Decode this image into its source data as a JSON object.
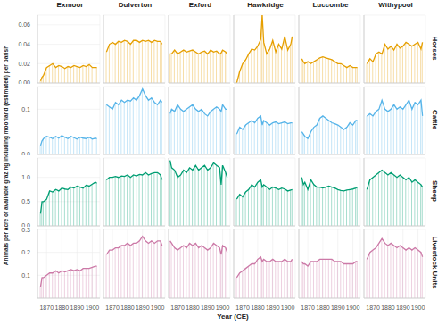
{
  "x_label": "Year (CE)",
  "y_label": "Animals per acre of available grazing including moorland (estimated) per parish",
  "xlim": [
    1864,
    1905
  ],
  "xticks": [
    1870,
    1880,
    1890,
    1900
  ],
  "grid": true,
  "chart_data": [
    {
      "type": "line",
      "title": "Exmoor",
      "x": [
        1866,
        1867,
        1868,
        1870,
        1872,
        1874,
        1876,
        1878,
        1880,
        1882,
        1884,
        1886,
        1888,
        1890,
        1892,
        1894,
        1896,
        1898,
        1900,
        1902,
        1903
      ],
      "series": [
        {
          "name": "Horses",
          "color": "#E69F00",
          "ylim": [
            0,
            0.07
          ],
          "yticks": [
            {
              "value": 0,
              "label": "0.00"
            },
            0.02,
            0.04,
            0.06
          ],
          "values": [
            0.002,
            0.006,
            0.008,
            0.016,
            0.018,
            0.02,
            0.016,
            0.018,
            0.017,
            0.015,
            0.017,
            0.016,
            0.018,
            0.017,
            0.016,
            0.018,
            0.017,
            0.019,
            0.016,
            0.016,
            0.016
          ]
        },
        {
          "name": "Cattle",
          "color": "#56B4E9",
          "ylim": [
            0,
            0.15
          ],
          "yticks": [
            {
              "value": 0,
              "label": "0.0"
            },
            0.1
          ],
          "values": [
            0.02,
            0.03,
            0.035,
            0.04,
            0.038,
            0.035,
            0.04,
            0.036,
            0.042,
            0.038,
            0.035,
            0.04,
            0.037,
            0.034,
            0.038,
            0.036,
            0.035,
            0.038,
            0.034,
            0.036,
            0.035
          ]
        },
        {
          "name": "Sheep",
          "color": "#009E73",
          "ylim": [
            0,
            1.4
          ],
          "yticks": [
            {
              "value": 0,
              "label": "0.0"
            },
            0.5,
            {
              "value": 1,
              "label": "1.0"
            }
          ],
          "values": [
            0.25,
            0.5,
            0.5,
            0.55,
            0.72,
            0.7,
            0.75,
            0.72,
            0.78,
            0.76,
            0.75,
            0.8,
            0.78,
            0.82,
            0.8,
            0.78,
            0.84,
            0.82,
            0.86,
            0.9,
            0.88
          ]
        },
        {
          "name": "Livestock Units",
          "color": "#CC79A7",
          "ylim": [
            0,
            0.3
          ],
          "yticks": [
            0.1,
            0.2,
            0.3
          ],
          "values": [
            0.05,
            0.09,
            0.09,
            0.1,
            0.11,
            0.11,
            0.12,
            0.11,
            0.12,
            0.115,
            0.12,
            0.125,
            0.12,
            0.125,
            0.12,
            0.13,
            0.13,
            0.13,
            0.135,
            0.14,
            0.14
          ]
        }
      ]
    },
    {
      "type": "line",
      "title": "Dulverton",
      "x": [
        1866,
        1868,
        1870,
        1872,
        1874,
        1876,
        1878,
        1880,
        1882,
        1884,
        1886,
        1888,
        1890,
        1892,
        1894,
        1896,
        1898,
        1900,
        1902,
        1903
      ],
      "series": [
        {
          "name": "Horses",
          "color": "#E69F00",
          "ylim": [
            0,
            0.07
          ],
          "yticks": [
            {
              "value": 0,
              "label": "0.00"
            },
            0.02,
            0.04,
            0.06
          ],
          "values": [
            0.032,
            0.04,
            0.042,
            0.04,
            0.043,
            0.042,
            0.044,
            0.043,
            0.04,
            0.044,
            0.044,
            0.042,
            0.044,
            0.043,
            0.044,
            0.042,
            0.044,
            0.043,
            0.043,
            0.04
          ]
        },
        {
          "name": "Cattle",
          "color": "#56B4E9",
          "ylim": [
            0,
            0.15
          ],
          "yticks": [
            {
              "value": 0,
              "label": "0.0"
            },
            0.1
          ],
          "values": [
            0.11,
            0.105,
            0.1,
            0.115,
            0.11,
            0.12,
            0.115,
            0.12,
            0.118,
            0.125,
            0.12,
            0.13,
            0.145,
            0.13,
            0.12,
            0.125,
            0.115,
            0.11,
            0.12,
            0.115
          ]
        },
        {
          "name": "Sheep",
          "color": "#009E73",
          "ylim": [
            0,
            1.4
          ],
          "yticks": [
            {
              "value": 0,
              "label": "0.0"
            },
            0.5,
            {
              "value": 1,
              "label": "1.0"
            }
          ],
          "values": [
            0.95,
            1.0,
            1.0,
            1.02,
            1.0,
            1.03,
            1.02,
            1.05,
            1.0,
            1.05,
            1.03,
            1.06,
            1.05,
            1.1,
            1.05,
            1.08,
            1.1,
            1.1,
            1.05,
            0.95
          ]
        },
        {
          "name": "Livestock Units",
          "color": "#CC79A7",
          "ylim": [
            0,
            0.3
          ],
          "yticks": [
            0.1,
            0.2,
            0.3
          ],
          "values": [
            0.19,
            0.21,
            0.21,
            0.22,
            0.22,
            0.23,
            0.23,
            0.24,
            0.23,
            0.24,
            0.24,
            0.25,
            0.27,
            0.25,
            0.24,
            0.25,
            0.24,
            0.25,
            0.25,
            0.23
          ]
        }
      ]
    },
    {
      "type": "line",
      "title": "Exford",
      "x": [
        1865,
        1866,
        1868,
        1870,
        1872,
        1874,
        1876,
        1878,
        1880,
        1882,
        1884,
        1886,
        1888,
        1890,
        1892,
        1894,
        1896,
        1898,
        1899,
        1900,
        1902,
        1903
      ],
      "series": [
        {
          "name": "Horses",
          "color": "#E69F00",
          "ylim": [
            0,
            0.07
          ],
          "yticks": [
            {
              "value": 0,
              "label": "0.00"
            },
            0.02,
            0.04,
            0.06
          ],
          "values": [
            0.03,
            0.03,
            0.034,
            0.03,
            0.032,
            0.034,
            0.032,
            0.033,
            0.034,
            0.032,
            0.03,
            0.032,
            0.033,
            0.03,
            0.034,
            0.032,
            0.033,
            0.03,
            0.031,
            0.034,
            0.032,
            0.03
          ]
        },
        {
          "name": "Cattle",
          "color": "#56B4E9",
          "ylim": [
            0,
            0.15
          ],
          "yticks": [
            {
              "value": 0,
              "label": "0.0"
            },
            0.1
          ],
          "values": [
            0.09,
            0.1,
            0.095,
            0.11,
            0.1,
            0.095,
            0.1,
            0.105,
            0.11,
            0.1,
            0.095,
            0.1,
            0.09,
            0.085,
            0.095,
            0.1,
            0.105,
            0.1,
            0.095,
            0.11,
            0.1,
            0.1
          ]
        },
        {
          "name": "Sheep",
          "color": "#009E73",
          "ylim": [
            0,
            1.4
          ],
          "yticks": [
            {
              "value": 0,
              "label": "0.0"
            },
            0.5,
            {
              "value": 1,
              "label": "1.0"
            }
          ],
          "values": [
            1.35,
            1.2,
            1.15,
            1.0,
            1.05,
            1.15,
            1.1,
            1.2,
            1.15,
            1.25,
            1.15,
            1.2,
            1.25,
            1.15,
            1.2,
            1.3,
            1.25,
            1.2,
            0.85,
            1.25,
            1.1,
            1.0
          ]
        },
        {
          "name": "Livestock Units",
          "color": "#CC79A7",
          "ylim": [
            0,
            0.3
          ],
          "yticks": [
            0.1,
            0.2,
            0.3
          ],
          "values": [
            0.25,
            0.24,
            0.22,
            0.21,
            0.22,
            0.23,
            0.22,
            0.24,
            0.23,
            0.24,
            0.22,
            0.23,
            0.22,
            0.21,
            0.22,
            0.24,
            0.23,
            0.22,
            0.19,
            0.23,
            0.22,
            0.2
          ]
        }
      ]
    },
    {
      "type": "line",
      "title": "Hawkridge",
      "x": [
        1866,
        1868,
        1870,
        1872,
        1874,
        1876,
        1878,
        1880,
        1882,
        1883,
        1884,
        1886,
        1888,
        1890,
        1892,
        1894,
        1896,
        1898,
        1900,
        1902,
        1903
      ],
      "series": [
        {
          "name": "Horses",
          "color": "#E69F00",
          "ylim": [
            0,
            0.07
          ],
          "yticks": [
            {
              "value": 0,
              "label": "0.00"
            },
            0.02,
            0.04,
            0.06
          ],
          "values": [
            0.0,
            0.012,
            0.02,
            0.024,
            0.03,
            0.035,
            0.034,
            0.038,
            0.045,
            0.07,
            0.042,
            0.03,
            0.035,
            0.044,
            0.032,
            0.04,
            0.035,
            0.048,
            0.034,
            0.04,
            0.048
          ]
        },
        {
          "name": "Cattle",
          "color": "#56B4E9",
          "ylim": [
            0,
            0.15
          ],
          "yticks": [
            {
              "value": 0,
              "label": "0.0"
            },
            0.1
          ],
          "values": [
            0.045,
            0.06,
            0.055,
            0.065,
            0.07,
            0.075,
            0.07,
            0.08,
            0.085,
            0.065,
            0.075,
            0.07,
            0.065,
            0.07,
            0.072,
            0.068,
            0.07,
            0.072,
            0.068,
            0.07,
            0.07
          ]
        },
        {
          "name": "Sheep",
          "color": "#009E73",
          "ylim": [
            0,
            1.4
          ],
          "yticks": [
            {
              "value": 0,
              "label": "0.0"
            },
            0.5,
            {
              "value": 1,
              "label": "1.0"
            }
          ],
          "values": [
            0.55,
            0.65,
            0.6,
            0.7,
            0.75,
            0.85,
            0.8,
            0.9,
            0.95,
            0.8,
            0.85,
            0.8,
            0.75,
            0.8,
            0.78,
            0.75,
            0.78,
            0.76,
            0.72,
            0.74,
            0.75
          ]
        },
        {
          "name": "Livestock Units",
          "color": "#CC79A7",
          "ylim": [
            0,
            0.3
          ],
          "yticks": [
            0.1,
            0.2,
            0.3
          ],
          "values": [
            0.09,
            0.11,
            0.12,
            0.13,
            0.14,
            0.15,
            0.15,
            0.17,
            0.18,
            0.16,
            0.17,
            0.16,
            0.16,
            0.17,
            0.16,
            0.16,
            0.16,
            0.17,
            0.16,
            0.16,
            0.17
          ]
        }
      ]
    },
    {
      "type": "line",
      "title": "Luccombe",
      "x": [
        1866,
        1867,
        1868,
        1870,
        1872,
        1874,
        1876,
        1878,
        1880,
        1882,
        1884,
        1886,
        1888,
        1890,
        1892,
        1894,
        1896,
        1898,
        1900,
        1902,
        1903
      ],
      "series": [
        {
          "name": "Horses",
          "color": "#E69F00",
          "ylim": [
            0,
            0.07
          ],
          "yticks": [
            {
              "value": 0,
              "label": "0.00"
            },
            0.02,
            0.04,
            0.06
          ],
          "values": [
            0.025,
            0.022,
            0.02,
            0.022,
            0.02,
            0.022,
            0.024,
            0.026,
            0.027,
            0.026,
            0.025,
            0.024,
            0.022,
            0.02,
            0.02,
            0.018,
            0.016,
            0.018,
            0.016,
            0.016,
            0.016
          ]
        },
        {
          "name": "Cattle",
          "color": "#56B4E9",
          "ylim": [
            0,
            0.15
          ],
          "yticks": [
            {
              "value": 0,
              "label": "0.0"
            },
            0.1
          ],
          "values": [
            0.05,
            0.045,
            0.04,
            0.035,
            0.05,
            0.06,
            0.065,
            0.08,
            0.085,
            0.08,
            0.075,
            0.07,
            0.068,
            0.065,
            0.06,
            0.055,
            0.06,
            0.07,
            0.065,
            0.075,
            0.075
          ]
        },
        {
          "name": "Sheep",
          "color": "#009E73",
          "ylim": [
            0,
            1.4
          ],
          "yticks": [
            {
              "value": 0,
              "label": "0.0"
            },
            0.5,
            {
              "value": 1,
              "label": "1.0"
            }
          ],
          "values": [
            1.0,
            0.85,
            0.9,
            0.75,
            0.95,
            0.85,
            0.8,
            0.8,
            0.78,
            0.8,
            0.82,
            0.8,
            0.78,
            0.75,
            0.73,
            0.72,
            0.74,
            0.75,
            0.76,
            0.78,
            0.8
          ]
        },
        {
          "name": "Livestock Units",
          "color": "#CC79A7",
          "ylim": [
            0,
            0.3
          ],
          "yticks": [
            0.1,
            0.2,
            0.3
          ],
          "values": [
            0.16,
            0.15,
            0.15,
            0.14,
            0.16,
            0.16,
            0.16,
            0.17,
            0.17,
            0.17,
            0.17,
            0.17,
            0.16,
            0.16,
            0.16,
            0.15,
            0.15,
            0.15,
            0.15,
            0.16,
            0.16
          ]
        }
      ]
    },
    {
      "type": "line",
      "title": "Withypool",
      "x": [
        1866,
        1868,
        1870,
        1872,
        1874,
        1876,
        1878,
        1880,
        1882,
        1884,
        1886,
        1888,
        1890,
        1892,
        1894,
        1896,
        1898,
        1900,
        1902,
        1903
      ],
      "series": [
        {
          "name": "Horses",
          "color": "#E69F00",
          "ylim": [
            0,
            0.07
          ],
          "yticks": [
            {
              "value": 0,
              "label": "0.00"
            },
            0.02,
            0.04,
            0.06
          ],
          "values": [
            0.02,
            0.025,
            0.022,
            0.03,
            0.032,
            0.03,
            0.04,
            0.035,
            0.038,
            0.034,
            0.04,
            0.036,
            0.038,
            0.042,
            0.04,
            0.038,
            0.04,
            0.042,
            0.035,
            0.042
          ]
        },
        {
          "name": "Cattle",
          "color": "#56B4E9",
          "ylim": [
            0,
            0.15
          ],
          "yticks": [
            {
              "value": 0,
              "label": "0.0"
            },
            0.1
          ],
          "values": [
            0.085,
            0.09,
            0.085,
            0.095,
            0.1,
            0.12,
            0.1,
            0.095,
            0.1,
            0.11,
            0.1,
            0.105,
            0.1,
            0.11,
            0.12,
            0.1,
            0.115,
            0.11,
            0.12,
            0.085
          ]
        },
        {
          "name": "Sheep",
          "color": "#009E73",
          "ylim": [
            0,
            1.4
          ],
          "yticks": [
            {
              "value": 0,
              "label": "0.0"
            },
            0.5,
            {
              "value": 1,
              "label": "1.0"
            }
          ],
          "values": [
            0.75,
            0.95,
            1.0,
            1.05,
            1.1,
            1.15,
            1.1,
            1.05,
            1.1,
            1.05,
            1.0,
            1.05,
            1.0,
            0.95,
            1.0,
            0.9,
            0.95,
            0.9,
            0.85,
            0.8
          ]
        },
        {
          "name": "Livestock Units",
          "color": "#CC79A7",
          "ylim": [
            0,
            0.3
          ],
          "yticks": [
            0.1,
            0.2,
            0.3
          ],
          "values": [
            0.17,
            0.2,
            0.21,
            0.22,
            0.24,
            0.26,
            0.24,
            0.23,
            0.24,
            0.23,
            0.22,
            0.23,
            0.22,
            0.21,
            0.22,
            0.21,
            0.22,
            0.21,
            0.2,
            0.18
          ]
        }
      ]
    }
  ]
}
